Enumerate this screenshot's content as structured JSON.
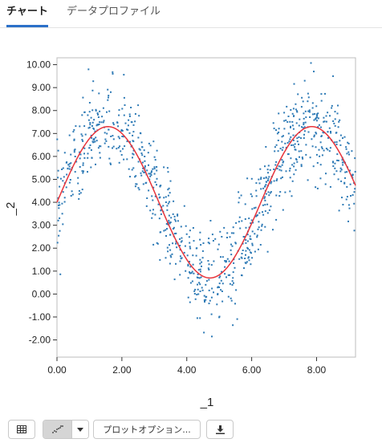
{
  "tabs": {
    "chart_label": "チャート",
    "profile_label": "データプロファイル"
  },
  "toolbar": {
    "table_icon": "table-icon",
    "chart_icon": "scatter-chart-icon",
    "caret_icon": "caret-down-icon",
    "options_label": "プロットオプション...",
    "download_icon": "download-icon"
  },
  "colors": {
    "points": "#2f7bb6",
    "fit_line": "#e8343b",
    "active_tab": "#2b70c9"
  },
  "chart_data": {
    "type": "scatter",
    "xlabel": "_1",
    "ylabel": "_2",
    "xlim": [
      0,
      9.2
    ],
    "ylim": [
      -2.75,
      10.3
    ],
    "xticks": [
      "0.00",
      "2.00",
      "4.00",
      "6.00",
      "8.00"
    ],
    "yticks": [
      "-2.00",
      "-1.00",
      "0.00",
      "1.00",
      "2.00",
      "3.00",
      "4.00",
      "5.00",
      "6.00",
      "7.00",
      "8.00",
      "9.00",
      "10.00"
    ],
    "grid": false,
    "legend": "none",
    "series": [
      {
        "kind": "points",
        "count": 1000,
        "model": "y = 4 + 3.3*sin(x) + noise",
        "x_range": [
          0,
          9.2
        ]
      },
      {
        "kind": "fit-line",
        "model": "y = 4 + 3.3*sin(x)",
        "peaks": [
          [
            1.57,
            7.3
          ],
          [
            7.85,
            7.3
          ]
        ],
        "trough": [
          4.71,
          0.7
        ]
      }
    ]
  }
}
